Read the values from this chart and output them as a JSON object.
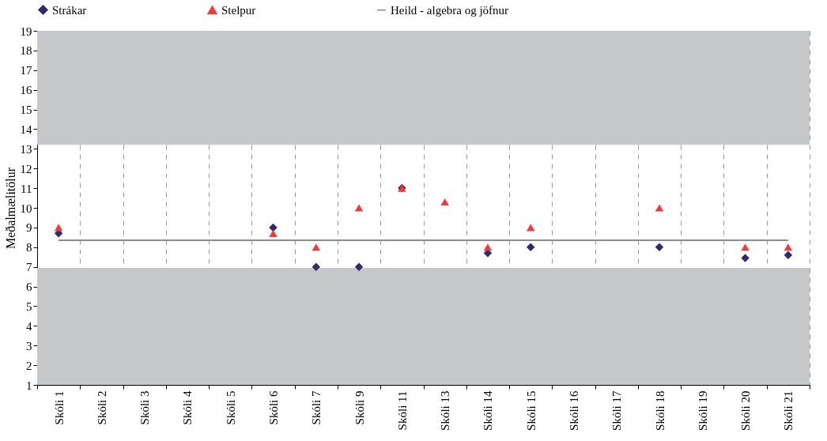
{
  "chart_data": {
    "type": "scatter",
    "ylabel": "Meðalmælitölur",
    "categories": [
      "Skóli 1",
      "Skóli 2",
      "Skóli 3",
      "Skóli 4",
      "Skóli 5",
      "Skóli 6",
      "Skóli 7",
      "Skóli 9",
      "Skóli 11",
      "Skóli 13",
      "Skóli 14",
      "Skóli 15",
      "Skóli 16",
      "Skóli 17",
      "Skóli 18",
      "Skóli 19",
      "Skóli 20",
      "Skóli 21"
    ],
    "series": [
      {
        "name": "Strákar",
        "marker": "diamond",
        "color": "#2e2a6b",
        "values": [
          8.7,
          null,
          null,
          null,
          null,
          9.0,
          7.0,
          7.0,
          11.0,
          null,
          7.7,
          8.0,
          null,
          null,
          8.0,
          null,
          7.45,
          7.6
        ]
      },
      {
        "name": "Stelpur",
        "marker": "triangle",
        "color": "#ef3b3b",
        "values": [
          9.0,
          null,
          null,
          null,
          null,
          8.7,
          8.0,
          10.0,
          11.0,
          10.3,
          8.0,
          9.0,
          null,
          null,
          10.0,
          null,
          8.0,
          8.0
        ]
      },
      {
        "name": "Heild - algebra og jöfnur",
        "type": "line",
        "marker": "none",
        "color": "#8c8c8c",
        "values": [
          8.35,
          8.35,
          8.35,
          8.35,
          8.35,
          8.35,
          8.35,
          8.35,
          8.35,
          8.35,
          8.35,
          8.35,
          8.35,
          8.35,
          8.35,
          8.35,
          8.35,
          8.35
        ]
      }
    ],
    "bands": [
      {
        "axis": "y",
        "from": 13.2,
        "to": 19,
        "color": "#c6c7c9"
      },
      {
        "axis": "y",
        "from": 1,
        "to": 6.95,
        "color": "#c6c7c9"
      }
    ],
    "ylim": [
      1,
      19
    ],
    "yticks": [
      1,
      2,
      3,
      4,
      5,
      6,
      7,
      8,
      9,
      10,
      11,
      12,
      13,
      14,
      15,
      16,
      17,
      18,
      19
    ],
    "grid": "x",
    "legend": "top"
  }
}
